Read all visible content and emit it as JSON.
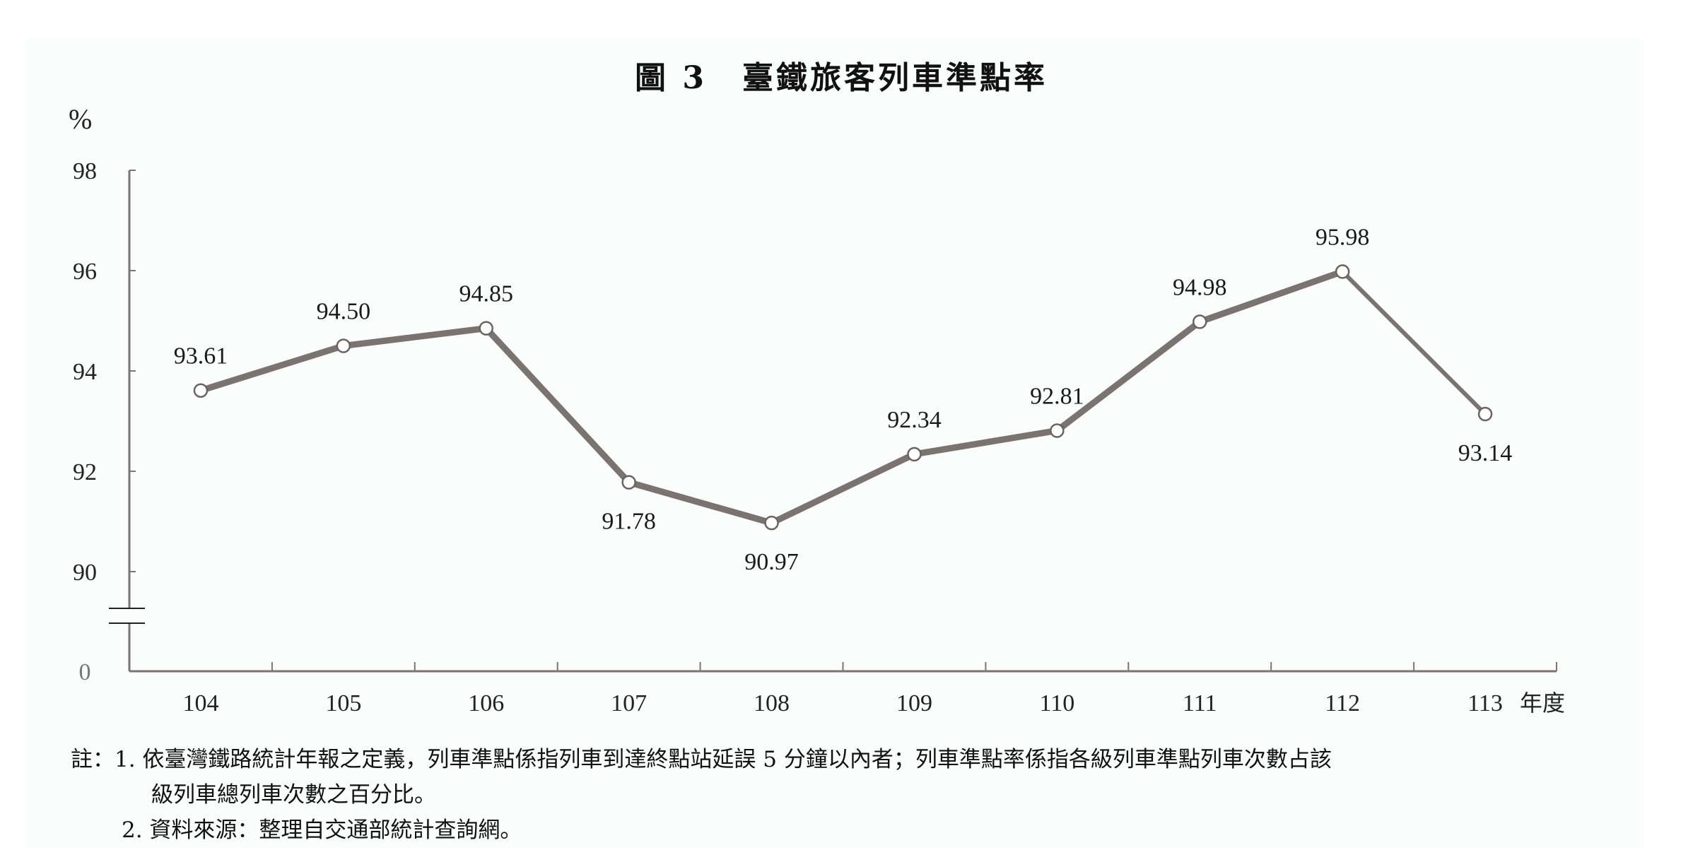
{
  "figure": {
    "number_label": "圖 3",
    "title": "臺鐵旅客列車準點率"
  },
  "chart_data": {
    "type": "line",
    "title": "臺鐵旅客列車準點率",
    "xlabel": "年度",
    "ylabel": "%",
    "categories": [
      "104",
      "105",
      "106",
      "107",
      "108",
      "109",
      "110",
      "111",
      "112",
      "113"
    ],
    "series": [
      {
        "name": "臺鐵旅客列車準點率",
        "values": [
          93.61,
          94.5,
          94.85,
          91.78,
          90.97,
          92.34,
          92.81,
          94.98,
          95.98,
          93.14
        ],
        "labels": [
          "93.61",
          "94.50",
          "94.85",
          "91.78",
          "90.97",
          "92.34",
          "92.81",
          "94.98",
          "95.98",
          "93.14"
        ],
        "label_position": [
          "above",
          "above",
          "above",
          "below",
          "below",
          "above",
          "above",
          "above",
          "above",
          "below"
        ]
      }
    ],
    "yticks": [
      "98",
      "96",
      "94",
      "92",
      "90",
      "0"
    ],
    "ylim": [
      90,
      98
    ],
    "axis_break": "between 90 and 0",
    "grid": false,
    "legend": "none",
    "colors": {
      "line": "#7a7370",
      "marker_stroke": "#6b6360",
      "marker_fill": "#ffffff",
      "axis": "#7d7472"
    }
  },
  "axis": {
    "y_unit": "%",
    "x_unit": "年度"
  },
  "notes": {
    "prefix": "註：",
    "item1_line1": "1. 依臺灣鐵路統計年報之定義，列車準點係指列車到達終點站延誤 5 分鐘以內者；列車準點率係指各級列車準點列車次數占該",
    "item1_line2": "級列車總列車次數之百分比。",
    "item2": "2. 資料來源：整理自交通部統計查詢網。"
  }
}
